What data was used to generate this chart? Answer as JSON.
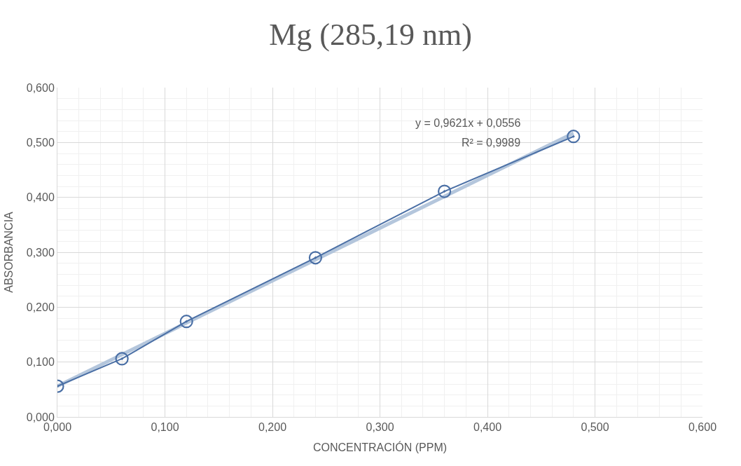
{
  "chart_data": {
    "type": "line",
    "title": "Mg (285,19 nm)",
    "xlabel": "CONCENTRACIÓN (PPM)",
    "ylabel": "ABSORBANCIA",
    "x": [
      0,
      0.06,
      0.12,
      0.24,
      0.36,
      0.48
    ],
    "series": [
      {
        "color": "#4a6fa5",
        "values": [
          0.056,
          0.106,
          0.174,
          0.29,
          0.411,
          0.511
        ],
        "marker": "circle"
      },
      {
        "type": "line",
        "color": "#b4c6dc",
        "x": [
          0,
          0.48
        ],
        "values": [
          0.056,
          0.517
        ],
        "marker": "none"
      }
    ],
    "xlim": [
      0,
      0.6
    ],
    "xticks": [
      {
        "value": 0,
        "label": "0,000"
      },
      {
        "value": 0.1,
        "label": "0,100"
      },
      {
        "value": 0.2,
        "label": "0,200"
      },
      {
        "value": 0.3,
        "label": "0,300"
      },
      {
        "value": 0.4,
        "label": "0,400"
      },
      {
        "value": 0.5,
        "label": "0,500"
      },
      {
        "value": 0.6,
        "label": "0,600"
      }
    ],
    "ylim": [
      0,
      0.6
    ],
    "yticks": [
      {
        "value": 0,
        "label": "0,000"
      },
      {
        "value": 0.1,
        "label": "0,100"
      },
      {
        "value": 0.2,
        "label": "0,200"
      },
      {
        "value": 0.3,
        "label": "0,300"
      },
      {
        "value": 0.4,
        "label": "0,400"
      },
      {
        "value": 0.5,
        "label": "0,500"
      },
      {
        "value": 0.6,
        "label": "0,600"
      }
    ],
    "grid": true,
    "annotations": [
      "y = 0,9621x + 0,0556",
      "R² = 0,9989"
    ]
  }
}
